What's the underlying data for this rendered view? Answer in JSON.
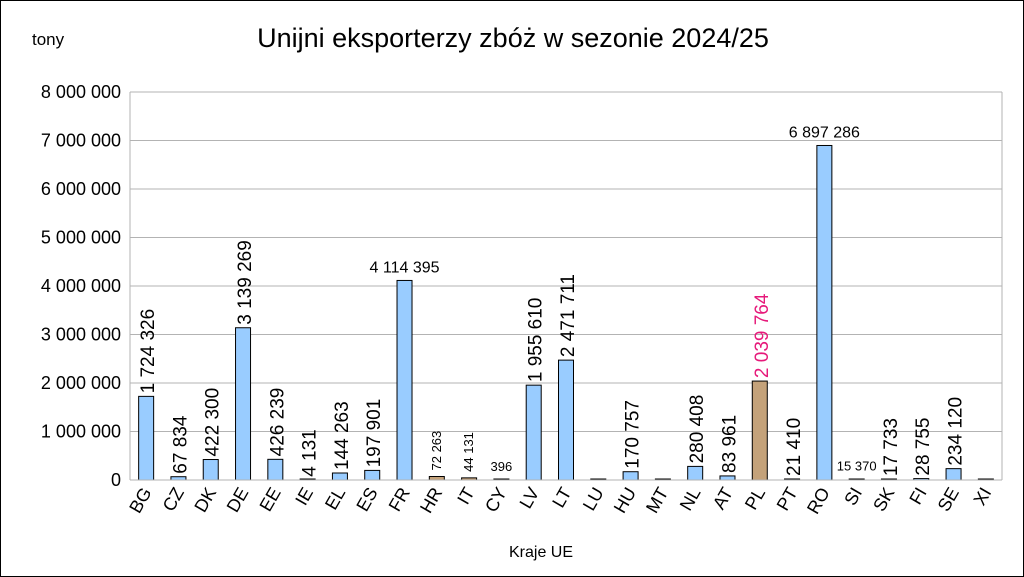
{
  "chart_data": {
    "type": "bar",
    "title": "Unijni eksporterzy zbóż w sezonie 2024/25",
    "ylabel": "tony",
    "xlabel": "Kraje UE",
    "ylim": [
      0,
      8000000
    ],
    "ytick_step": 1000000,
    "grid": true,
    "legend": "none",
    "colors": {
      "default": "#99ccff",
      "highlight": "#c4a27a",
      "bar_stroke": "#000000",
      "gridline": "#b3b3b3",
      "label": "#000000",
      "highlight_label": "#e6197a"
    },
    "categories": [
      "BG",
      "CZ",
      "DK",
      "DE",
      "EE",
      "IE",
      "EL",
      "ES",
      "FR",
      "HR",
      "IT",
      "CY",
      "LV",
      "LT",
      "LU",
      "HU",
      "MT",
      "NL",
      "AT",
      "PL",
      "PT",
      "RO",
      "SI",
      "SK",
      "FI",
      "SE",
      "XI"
    ],
    "values": [
      1724326,
      67834,
      422300,
      3139269,
      426239,
      4131,
      144263,
      197901,
      4114395,
      72263,
      44131,
      396,
      1955610,
      2471711,
      0,
      170757,
      0,
      280408,
      83961,
      2039764,
      21410,
      6897286,
      15370,
      17733,
      28755,
      234120,
      0
    ],
    "data_labels": [
      "1 724 326",
      "67 834",
      "422 300",
      "3 139 269",
      "426 239",
      "4 131",
      "144 263",
      "197 901",
      "4 114 395",
      "72 263",
      "44 131",
      "396",
      "1 955 610",
      "2 471 711",
      "",
      "170 757",
      "",
      "280 408",
      "83 961",
      "2 039 764",
      "21 410",
      "6 897 286",
      "15 370",
      "17 733",
      "28 755",
      "234 120",
      ""
    ],
    "label_style": [
      "vertical",
      "vertical",
      "vertical",
      "vertical",
      "vertical",
      "vertical",
      "vertical",
      "vertical",
      "horizontal",
      "small-vertical",
      "small-vertical",
      "small-horizontal",
      "vertical",
      "vertical",
      "none",
      "vertical",
      "none",
      "vertical",
      "vertical",
      "vertical-highlight",
      "vertical",
      "horizontal",
      "small-horizontal",
      "vertical",
      "vertical",
      "vertical",
      "none"
    ],
    "bar_style": [
      "default",
      "default",
      "default",
      "default",
      "default",
      "default",
      "default",
      "default",
      "default",
      "highlight",
      "highlight",
      "default",
      "default",
      "default",
      "default",
      "default",
      "default",
      "default",
      "default",
      "highlight",
      "default",
      "default",
      "highlight",
      "default",
      "default",
      "default",
      "default"
    ]
  }
}
